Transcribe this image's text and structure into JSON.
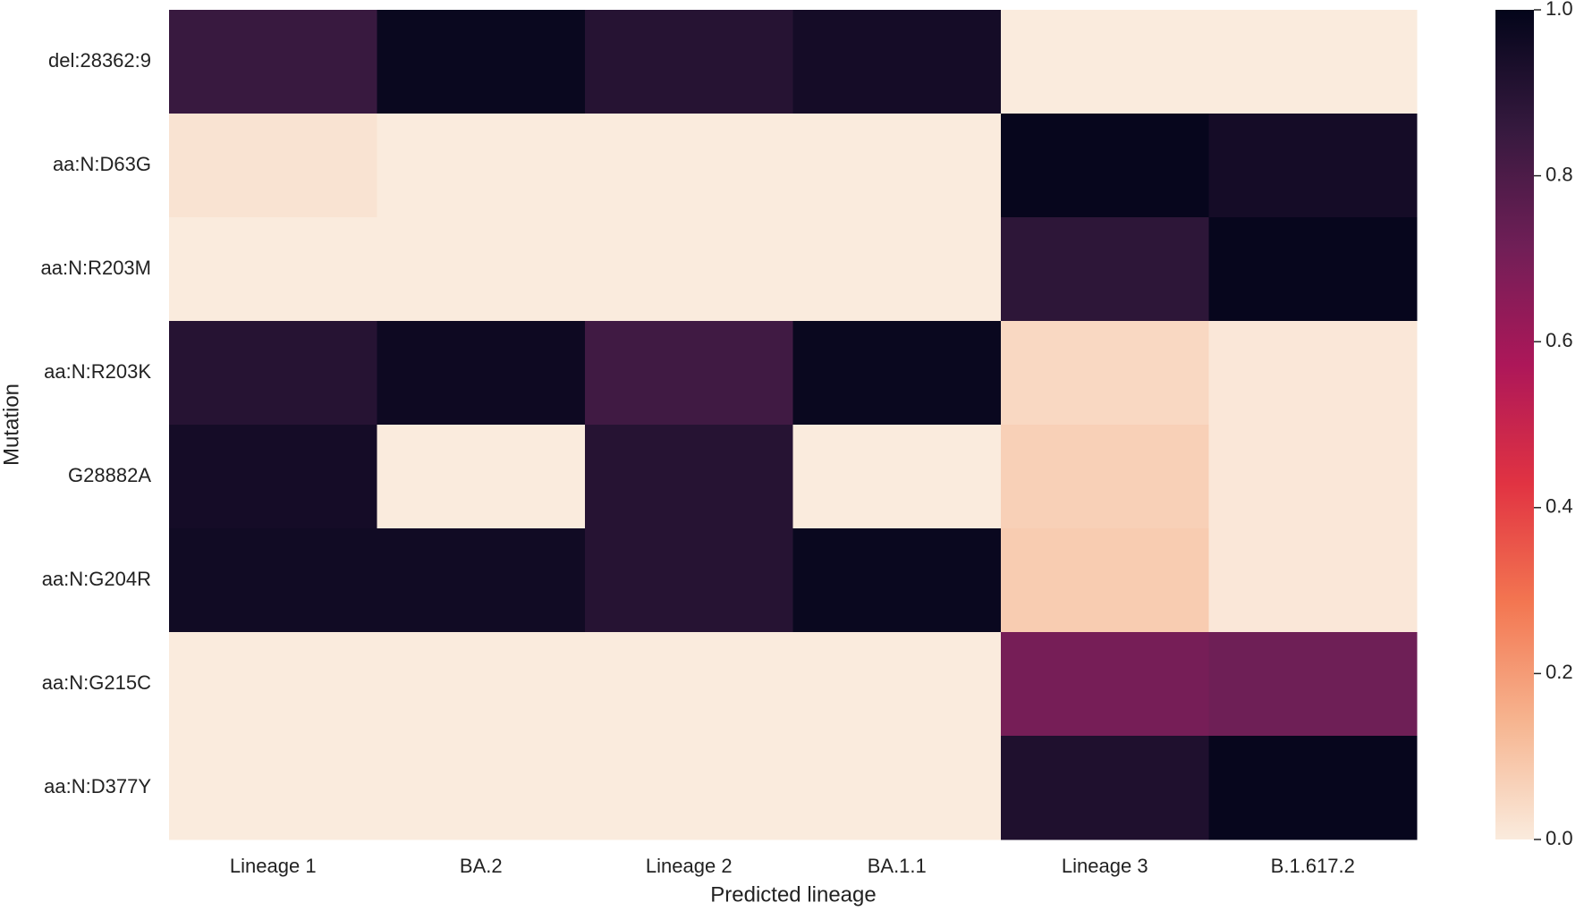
{
  "chart_data": {
    "type": "heatmap",
    "xlabel": "Predicted lineage",
    "ylabel": "Mutation",
    "x_categories": [
      "Lineage 1",
      "BA.2",
      "Lineage 2",
      "BA.1.1",
      "Lineage 3",
      "B.1.617.2"
    ],
    "y_categories": [
      "del:28362:9",
      "aa:N:D63G",
      "aa:N:R203M",
      "aa:N:R203K",
      "G28882A",
      "aa:N:G204R",
      "aa:N:G215C",
      "aa:N:D377Y"
    ],
    "values": [
      [
        0.85,
        0.98,
        0.9,
        0.95,
        0.0,
        0.0
      ],
      [
        0.02,
        0.0,
        0.0,
        0.0,
        0.99,
        0.95
      ],
      [
        0.0,
        0.0,
        0.0,
        0.0,
        0.88,
        0.99
      ],
      [
        0.9,
        0.97,
        0.83,
        0.98,
        0.05,
        0.01
      ],
      [
        0.95,
        0.0,
        0.9,
        0.0,
        0.07,
        0.01
      ],
      [
        0.96,
        0.96,
        0.9,
        0.98,
        0.08,
        0.01
      ],
      [
        0.0,
        0.0,
        0.0,
        0.0,
        0.7,
        0.72
      ],
      [
        0.0,
        0.0,
        0.0,
        0.0,
        0.92,
        0.99
      ]
    ],
    "clim": [
      0,
      1
    ],
    "cticks": [
      {
        "value": 0,
        "label": "0.0"
      },
      0.2,
      0.4,
      0.6,
      0.8,
      {
        "value": 1,
        "label": "1.0"
      }
    ],
    "colorscale": [
      "#faebdd",
      "#f6b48f",
      "#f37651",
      "#e13342",
      "#ad1759",
      "#701f57",
      "#35193e",
      "#03051a"
    ]
  }
}
